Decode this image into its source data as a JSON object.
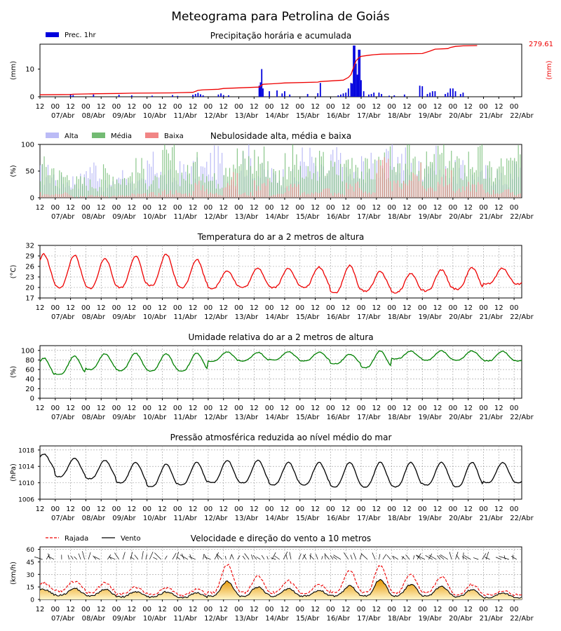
{
  "page_title": "Meteograma para Petrolina de Goiás",
  "x_axis": {
    "hour_ticks": [
      "12",
      "00",
      "12",
      "00",
      "12",
      "00",
      "12",
      "00",
      "12",
      "00",
      "12",
      "00",
      "12",
      "00",
      "12",
      "00",
      "12",
      "00",
      "12",
      "00",
      "12",
      "00",
      "12",
      "00",
      "12",
      "00",
      "12",
      "00",
      "12",
      "00",
      "12",
      "00"
    ],
    "date_labels": [
      "07/Abr",
      "08/Abr",
      "09/Abr",
      "10/Abr",
      "11/Abr",
      "12/Abr",
      "13/Abr",
      "14/Abr",
      "15/Abr",
      "16/Abr",
      "17/Abr",
      "18/Abr",
      "19/Abr",
      "20/Abr",
      "21/Abr",
      "22/Abr"
    ],
    "start_hour_offset": 12,
    "total_hours": 378
  },
  "chart_data": [
    {
      "type": "bar",
      "title": "Precipitação horária e acumulada",
      "ylabel": "(mm)",
      "ylabel_right": "(mm)",
      "ylim": [
        0,
        19
      ],
      "yticks": [
        "0",
        "10"
      ],
      "ytick_values": [
        0,
        10
      ],
      "accumulated_total_label": "279.61",
      "colors": {
        "bars": "#0000dd",
        "accum": "#ee0000"
      },
      "legend": [
        "Prec. 1hr"
      ],
      "series": [
        {
          "name": "Prec. 1hr",
          "points": [
            [
              24,
              1
            ],
            [
              26,
              0.6
            ],
            [
              42,
              0.8
            ],
            [
              62,
              0.7
            ],
            [
              72,
              0.5
            ],
            [
              88,
              0.4
            ],
            [
              104,
              0.6
            ],
            [
              108,
              0.3
            ],
            [
              120,
              0.7
            ],
            [
              122,
              1.0
            ],
            [
              124,
              1.4
            ],
            [
              126,
              0.9
            ],
            [
              128,
              0.5
            ],
            [
              140,
              0.8
            ],
            [
              142,
              1.2
            ],
            [
              144,
              0.6
            ],
            [
              148,
              0.5
            ],
            [
              172,
              4.0
            ],
            [
              173,
              5.2
            ],
            [
              174,
              10.0
            ],
            [
              175,
              3.0
            ],
            [
              180,
              2.0
            ],
            [
              186,
              2.3
            ],
            [
              190,
              1.2
            ],
            [
              192,
              2.0
            ],
            [
              196,
              0.8
            ],
            [
              210,
              1.0
            ],
            [
              218,
              1.3
            ],
            [
              220,
              5.0
            ],
            [
              234,
              0.5
            ],
            [
              236,
              0.8
            ],
            [
              238,
              1.2
            ],
            [
              240,
              1.5
            ],
            [
              242,
              3.0
            ],
            [
              244,
              5.0
            ],
            [
              245,
              4.8
            ],
            [
              246,
              18.5
            ],
            [
              247,
              18.5
            ],
            [
              248,
              12.0
            ],
            [
              249,
              8.0
            ],
            [
              250,
              17.0
            ],
            [
              251,
              17.0
            ],
            [
              252,
              6.0
            ],
            [
              254,
              2.0
            ],
            [
              258,
              0.8
            ],
            [
              260,
              1.0
            ],
            [
              262,
              1.5
            ],
            [
              266,
              1.5
            ],
            [
              268,
              1.0
            ],
            [
              274,
              0.4
            ],
            [
              278,
              0.5
            ],
            [
              286,
              0.8
            ],
            [
              298,
              4.0
            ],
            [
              300,
              3.8
            ],
            [
              304,
              1.0
            ],
            [
              306,
              1.5
            ],
            [
              308,
              2.0
            ],
            [
              310,
              2.0
            ],
            [
              318,
              1.0
            ],
            [
              320,
              1.5
            ],
            [
              322,
              3.0
            ],
            [
              324,
              3.0
            ],
            [
              326,
              2.0
            ],
            [
              330,
              1.0
            ],
            [
              332,
              1.5
            ]
          ]
        },
        {
          "name": "accumulated",
          "points": [
            [
              0,
              0.7
            ],
            [
              24,
              0.8
            ],
            [
              26,
              0.9
            ],
            [
              44,
              1.1
            ],
            [
              62,
              1.2
            ],
            [
              72,
              1.3
            ],
            [
              104,
              1.4
            ],
            [
              120,
              1.6
            ],
            [
              124,
              2.3
            ],
            [
              128,
              2.5
            ],
            [
              140,
              2.7
            ],
            [
              144,
              3.0
            ],
            [
              172,
              3.5
            ],
            [
              175,
              4.5
            ],
            [
              186,
              4.8
            ],
            [
              192,
              5.0
            ],
            [
              218,
              5.3
            ],
            [
              220,
              5.5
            ],
            [
              238,
              6.0
            ],
            [
              242,
              7.0
            ],
            [
              244,
              8.0
            ],
            [
              246,
              10.5
            ],
            [
              248,
              13.0
            ],
            [
              250,
              14.0
            ],
            [
              252,
              14.6
            ],
            [
              258,
              15.0
            ],
            [
              262,
              15.2
            ],
            [
              268,
              15.4
            ],
            [
              300,
              15.6
            ],
            [
              306,
              16.5
            ],
            [
              310,
              17.2
            ],
            [
              320,
              17.4
            ],
            [
              322,
              17.8
            ],
            [
              326,
              18.2
            ],
            [
              332,
              18.4
            ],
            [
              343,
              18.5
            ]
          ]
        }
      ]
    },
    {
      "type": "bar",
      "title": "Nebulosidade alta, média e baixa",
      "ylabel": "(%)",
      "ylim": [
        0,
        100
      ],
      "yticks": [
        "0",
        "50",
        "100"
      ],
      "ytick_values": [
        0,
        50,
        100
      ],
      "legend": [
        "Alta",
        "Média",
        "Baixa"
      ],
      "colors": {
        "alta": "#b4b4f5",
        "media": "#64b464",
        "baixa": "#f07878"
      },
      "series": [
        {
          "name": "Alta",
          "levels_by_12h": [
            60,
            40,
            45,
            75,
            30,
            55,
            35,
            80,
            50,
            65,
            70,
            90,
            45,
            95,
            60,
            55,
            50,
            95,
            60,
            90,
            55,
            80,
            85,
            95,
            70,
            90,
            60,
            65,
            50,
            60,
            45,
            75
          ]
        },
        {
          "name": "Média",
          "levels_by_12h": [
            75,
            55,
            40,
            35,
            60,
            50,
            70,
            40,
            95,
            60,
            80,
            45,
            100,
            90,
            100,
            60,
            95,
            55,
            85,
            70,
            95,
            70,
            90,
            60,
            100,
            80,
            100,
            75,
            95,
            65,
            80,
            90
          ]
        },
        {
          "name": "Baixa",
          "levels_by_12h": [
            10,
            15,
            5,
            5,
            5,
            5,
            8,
            10,
            15,
            10,
            30,
            10,
            45,
            10,
            35,
            8,
            25,
            10,
            20,
            10,
            30,
            15,
            70,
            30,
            60,
            25,
            50,
            20,
            30,
            15,
            15,
            10
          ]
        }
      ]
    },
    {
      "type": "line",
      "title": "Temperatura do ar a 2 metros de altura",
      "ylabel": "(°C)",
      "ylim": [
        17,
        32
      ],
      "yticks": [
        "17",
        "20",
        "23",
        "26",
        "29",
        "32"
      ],
      "ytick_values": [
        17,
        20,
        23,
        26,
        29,
        32
      ],
      "colors": {
        "line": "#ee0000"
      },
      "series": [
        {
          "name": "Temperatura",
          "daily_max": [
            29.5,
            29.2,
            28.4,
            29.0,
            29.5,
            28.0,
            24.8,
            25.6,
            25.5,
            25.8,
            26.2,
            24.5,
            24.0,
            25.0,
            25.6,
            25.5
          ],
          "daily_min": [
            20.5,
            20.0,
            19.8,
            20.0,
            20.5,
            20.0,
            19.8,
            20.0,
            20.0,
            20.0,
            18.5,
            19.0,
            18.5,
            19.0,
            19.5,
            21.0
          ]
        }
      ]
    },
    {
      "type": "line",
      "title": "Umidade relativa do ar a 2 metros de altura",
      "ylabel": "(%)",
      "ylim": [
        0,
        110
      ],
      "yticks": [
        "0",
        "20",
        "40",
        "60",
        "80",
        "100"
      ],
      "ytick_values": [
        0,
        20,
        40,
        60,
        80,
        100
      ],
      "colors": {
        "line": "#008000"
      },
      "series": [
        {
          "name": "Umidade",
          "daily_max": [
            84,
            88,
            93,
            94,
            93,
            94,
            97,
            96,
            97,
            96,
            92,
            99,
            98,
            99,
            99,
            98
          ],
          "daily_min": [
            45,
            50,
            60,
            58,
            57,
            57,
            77,
            78,
            80,
            78,
            72,
            64,
            82,
            80,
            80,
            78
          ]
        }
      ]
    },
    {
      "type": "line",
      "title": "Pressão atmosférica reduzida ao nível médio do mar",
      "ylabel": "(hPa)",
      "ylim": [
        1006,
        1019
      ],
      "yticks": [
        "1006",
        "1010",
        "1014",
        "1018"
      ],
      "ytick_values": [
        1006,
        1010,
        1014,
        1018
      ],
      "colors": {
        "line": "#000000"
      },
      "series": [
        {
          "name": "Pressão",
          "daily_max": [
            1017.0,
            1016.0,
            1015.5,
            1015.0,
            1014.5,
            1015.0,
            1015.5,
            1015.5,
            1015.0,
            1015.0,
            1015.0,
            1015.0,
            1015.0,
            1015.0,
            1015.0,
            1015.0
          ],
          "daily_min": [
            1013.0,
            1011.5,
            1011.0,
            1010.0,
            1009.0,
            1009.5,
            1010.0,
            1010.0,
            1009.5,
            1009.5,
            1009.0,
            1009.0,
            1009.0,
            1009.5,
            1009.0,
            1010.0
          ]
        }
      ]
    },
    {
      "type": "line",
      "title": "Velocidade e direção do vento a 10 metros",
      "ylabel": "(km/h)",
      "ylim": [
        0,
        63
      ],
      "yticks": [
        "0",
        "15",
        "30",
        "45",
        "60"
      ],
      "ytick_values": [
        0,
        15,
        30,
        45,
        60
      ],
      "legend": [
        "Rajada",
        "Vento"
      ],
      "colors": {
        "rajada": "#ee0000",
        "vento": "#000000",
        "fill_top": "#e69600",
        "fill_bottom": "#fff5c8",
        "arrows": "#000000"
      },
      "series": [
        {
          "name": "Rajada",
          "daily_max": [
            20,
            22,
            20,
            15,
            14,
            12,
            42,
            28,
            22,
            18,
            35,
            40,
            30,
            28,
            18,
            10
          ],
          "daily_min": [
            10,
            10,
            8,
            6,
            6,
            5,
            8,
            8,
            8,
            8,
            8,
            8,
            8,
            8,
            5,
            5
          ]
        },
        {
          "name": "Vento",
          "daily_max": [
            12,
            13,
            12,
            9,
            9,
            8,
            22,
            15,
            13,
            11,
            16,
            24,
            18,
            16,
            12,
            8
          ],
          "daily_min": [
            5,
            5,
            4,
            3,
            3,
            2,
            4,
            4,
            4,
            4,
            4,
            4,
            4,
            4,
            3,
            2
          ]
        }
      ]
    }
  ]
}
